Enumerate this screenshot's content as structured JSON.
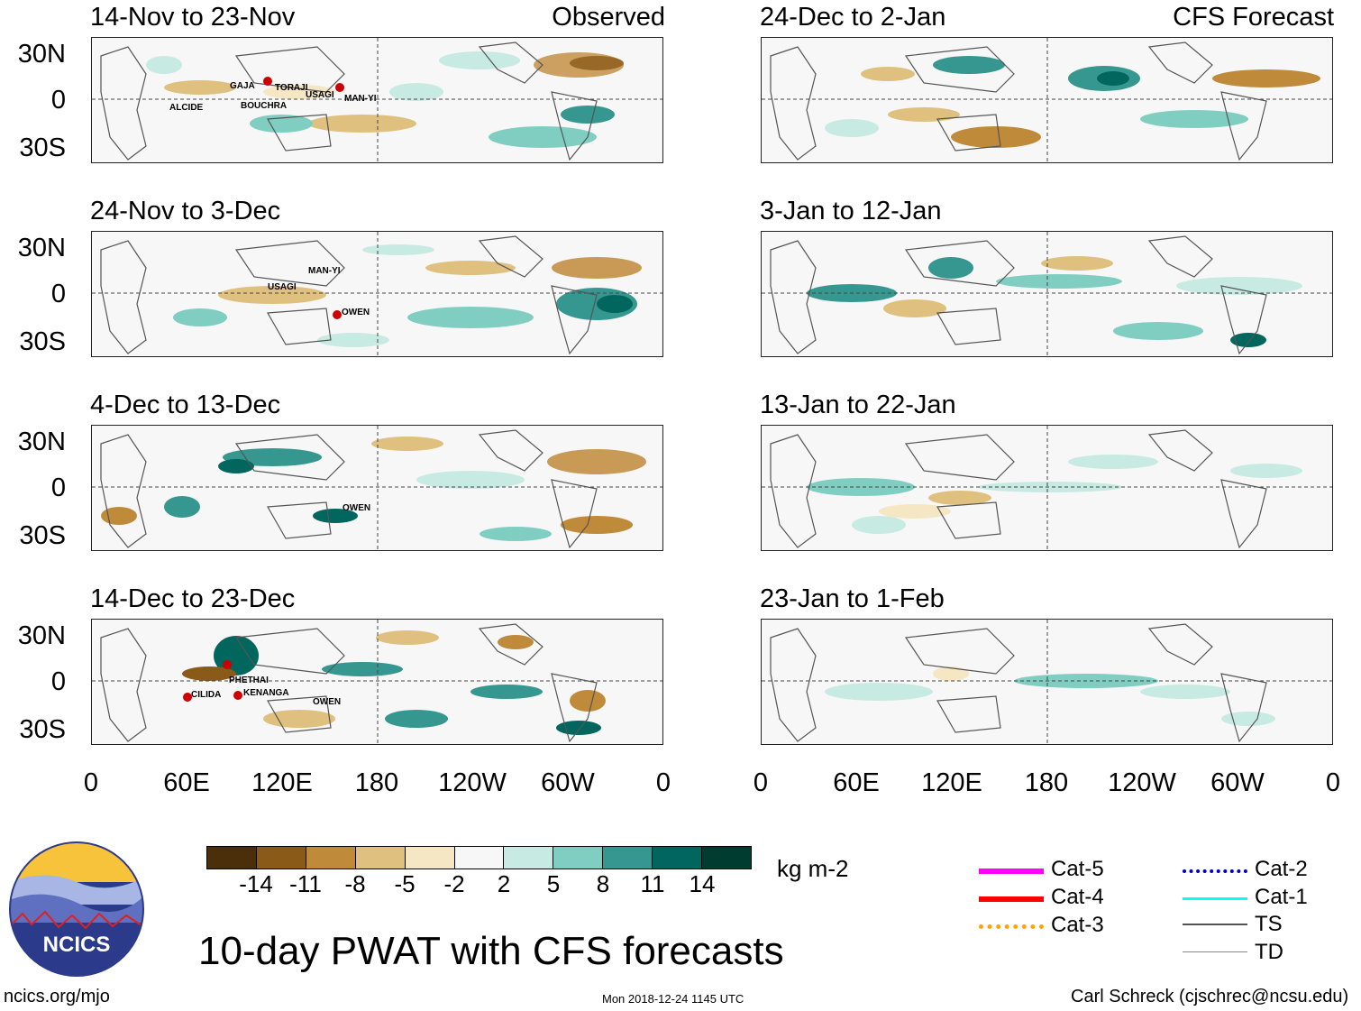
{
  "panels": {
    "observed": [
      {
        "title": "14-Nov to 23-Nov",
        "label": "Observed",
        "storms": [
          "GAJA",
          "TORAJI",
          "USAGI",
          "MAN-YI",
          "ALCIDE",
          "BOUCHRA"
        ]
      },
      {
        "title": "24-Nov to 3-Dec",
        "label": "",
        "storms": [
          "MAN-YI",
          "USAGI",
          "OWEN"
        ]
      },
      {
        "title": "4-Dec to 13-Dec",
        "label": "",
        "storms": [
          "OWEN"
        ]
      },
      {
        "title": "14-Dec to 23-Dec",
        "label": "",
        "storms": [
          "PHETHAI",
          "CILIDA",
          "KENANGA",
          "OWEN"
        ]
      }
    ],
    "forecast": [
      {
        "title": "24-Dec to 2-Jan",
        "label": "CFS Forecast"
      },
      {
        "title": "3-Jan to 12-Jan",
        "label": ""
      },
      {
        "title": "13-Jan to 22-Jan",
        "label": ""
      },
      {
        "title": "23-Jan to 1-Feb",
        "label": ""
      }
    ]
  },
  "axes": {
    "lat_labels": [
      "30N",
      "0",
      "30S"
    ],
    "lon_labels": [
      "0",
      "60E",
      "120E",
      "180",
      "120W",
      "60W",
      "0"
    ]
  },
  "colorbar": {
    "colors": [
      "#4a2f0a",
      "#8a5a18",
      "#bf8a3a",
      "#dfc07e",
      "#f5e6c4",
      "#f7f7f7",
      "#c7eae2",
      "#80cdc1",
      "#35978f",
      "#01665e",
      "#003c30"
    ],
    "ticks": [
      "-14",
      "-11",
      "-8",
      "-5",
      "-2",
      "2",
      "5",
      "8",
      "11",
      "14"
    ],
    "unit": "kg m-2"
  },
  "legend": [
    {
      "label": "Cat-5",
      "color": "#ff00ff"
    },
    {
      "label": "Cat-4",
      "color": "#ff0000"
    },
    {
      "label": "Cat-3",
      "color": "#ffa500"
    },
    {
      "label": "Cat-2",
      "color": "#0000cc"
    },
    {
      "label": "Cat-1",
      "color": "#00ffff"
    },
    {
      "label": "TS",
      "color": "#555555"
    },
    {
      "label": "TD",
      "color": "#888888"
    }
  ],
  "logo": {
    "text": "NCICS"
  },
  "main_title": "10-day PWAT with CFS forecasts",
  "footer": {
    "url": "ncics.org/mjo",
    "timestamp": "Mon 2018-12-24 1145 UTC",
    "author": "Carl Schreck (cjschrec@ncsu.edu)"
  }
}
